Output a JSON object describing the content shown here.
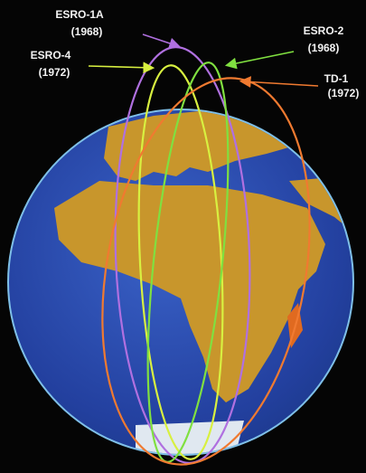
{
  "satellites": [
    {
      "name": "ESRO-1A",
      "year": "(1968)"
    },
    {
      "name": "ESRO-2",
      "year": "(1968)"
    },
    {
      "name": "ESRO-4",
      "year": "(1972)"
    },
    {
      "name": "TD-1",
      "year": "(1972)"
    }
  ]
}
